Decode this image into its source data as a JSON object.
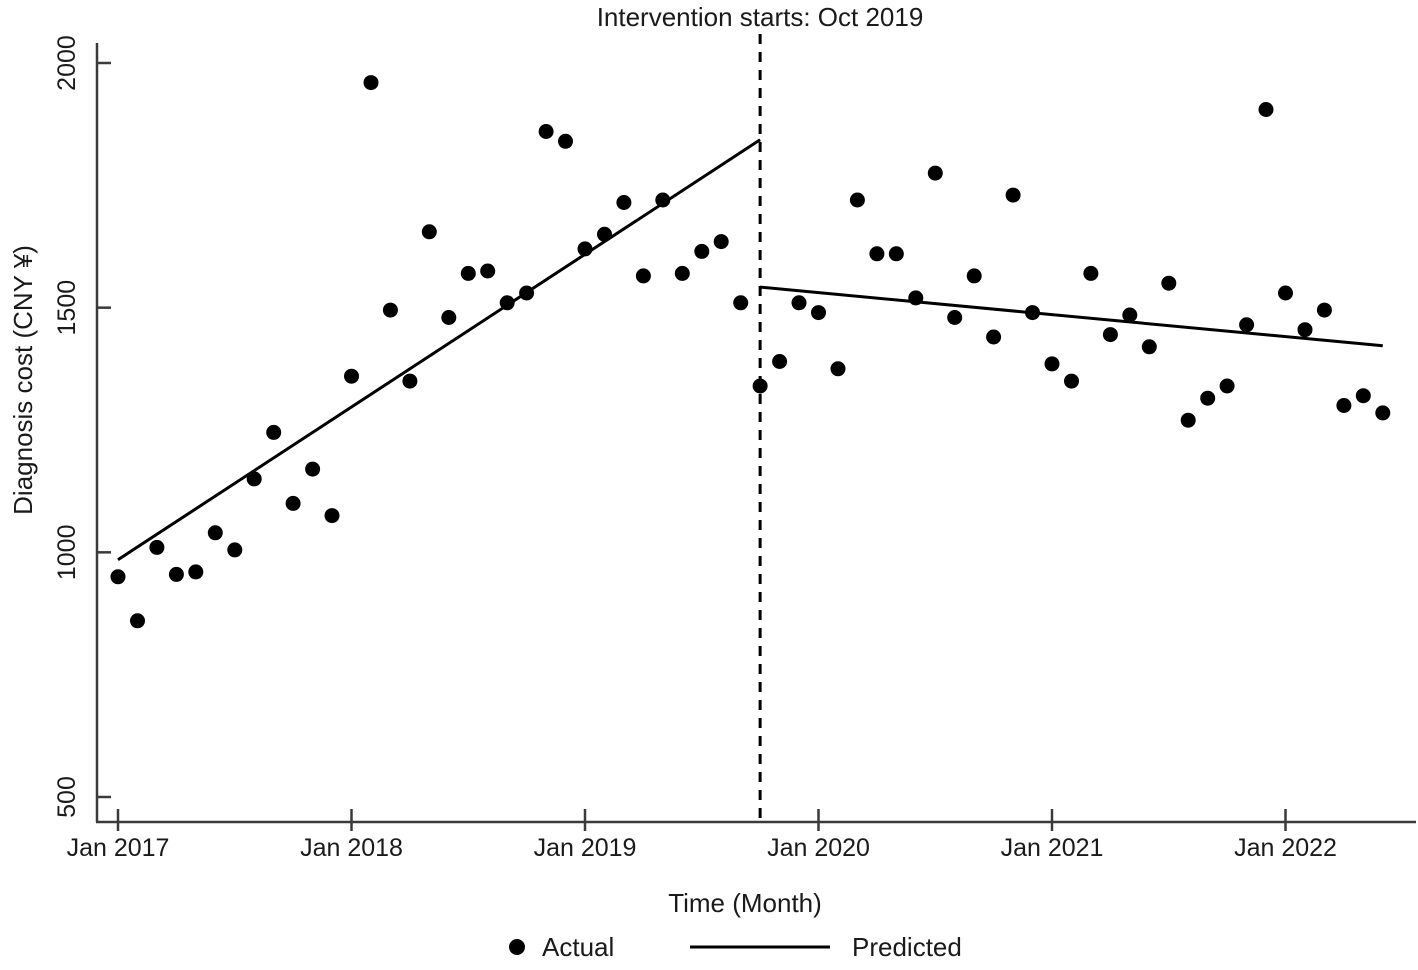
{
  "title": "Intervention starts: Oct 2019",
  "legend": {
    "actual_label": "Actual",
    "predicted_label": "Predicted"
  },
  "colors": {
    "points": "#000000",
    "lines": "#000000",
    "axis": "#3a3a3a",
    "text": "#1a1a1a"
  },
  "chart_data": {
    "type": "scatter",
    "title": "Intervention starts: Oct 2019",
    "xlabel": "Time (Month)",
    "ylabel": "Diagnosis cost (CNY ¥)",
    "ylim": [
      450,
      2050
    ],
    "grid": false,
    "legend_position": "bottom",
    "y_tick_values": [
      500,
      1000,
      1500,
      2000
    ],
    "x_tick_labels": [
      "Jan 2017",
      "Jan 2018",
      "Jan 2019",
      "Jan 2020",
      "Jan 2021",
      "Jan 2022"
    ],
    "intervention": {
      "label": "Intervention starts: Oct 2019",
      "month": "Oct 2019",
      "line_style": "dashed"
    },
    "months": [
      "Jan 2017",
      "Feb 2017",
      "Mar 2017",
      "Apr 2017",
      "May 2017",
      "Jun 2017",
      "Jul 2017",
      "Aug 2017",
      "Sep 2017",
      "Oct 2017",
      "Nov 2017",
      "Dec 2017",
      "Jan 2018",
      "Feb 2018",
      "Mar 2018",
      "Apr 2018",
      "May 2018",
      "Jun 2018",
      "Jul 2018",
      "Aug 2018",
      "Sep 2018",
      "Oct 2018",
      "Nov 2018",
      "Dec 2018",
      "Jan 2019",
      "Feb 2019",
      "Mar 2019",
      "Apr 2019",
      "May 2019",
      "Jun 2019",
      "Jul 2019",
      "Aug 2019",
      "Sep 2019",
      "Oct 2019",
      "Nov 2019",
      "Dec 2019",
      "Jan 2020",
      "Feb 2020",
      "Mar 2020",
      "Apr 2020",
      "May 2020",
      "Jun 2020",
      "Jul 2020",
      "Aug 2020",
      "Sep 2020",
      "Oct 2020",
      "Nov 2020",
      "Dec 2020",
      "Jan 2021",
      "Feb 2021",
      "Mar 2021",
      "Apr 2021",
      "May 2021",
      "Jun 2021",
      "Jul 2021",
      "Aug 2021",
      "Sep 2021",
      "Oct 2021",
      "Nov 2021",
      "Dec 2021",
      "Jan 2022",
      "Feb 2022",
      "Mar 2022",
      "Apr 2022",
      "May 2022",
      "Jun 2022"
    ],
    "series": [
      {
        "name": "Actual",
        "style": "scatter",
        "values": [
          950,
          860,
          1010,
          955,
          960,
          1040,
          1005,
          1150,
          1245,
          1100,
          1170,
          1075,
          1360,
          1960,
          1495,
          1350,
          1655,
          1480,
          1570,
          1575,
          1510,
          1530,
          1860,
          1840,
          1620,
          1650,
          1715,
          1565,
          1720,
          1570,
          1615,
          1635,
          1510,
          1340,
          1390,
          1510,
          1490,
          1375,
          1720,
          1610,
          1610,
          1520,
          1775,
          1480,
          1565,
          1440,
          1730,
          1490,
          1385,
          1350,
          1570,
          1445,
          1485,
          1420,
          1550,
          1270,
          1315,
          1340,
          1465,
          1905,
          1530,
          1455,
          1495,
          1300,
          1320,
          1285
        ]
      },
      {
        "name": "Predicted",
        "style": "line",
        "segments": [
          {
            "start_month": "Jan 2017",
            "start_value": 985,
            "end_month": "Oct 2019",
            "end_value": 1843
          },
          {
            "start_month": "Oct 2019",
            "start_value": 1542,
            "end_month": "Jun 2022",
            "end_value": 1422
          }
        ]
      }
    ]
  }
}
